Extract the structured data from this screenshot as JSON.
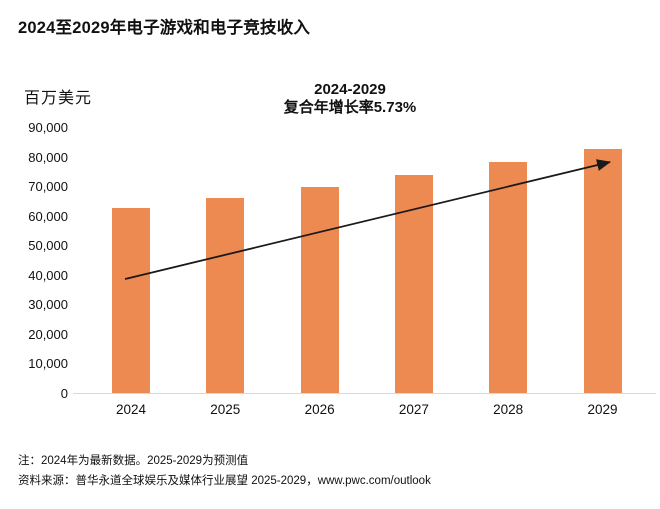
{
  "chart_data": {
    "type": "bar",
    "title": "2024至2029年电子游戏和电子竞技收入",
    "subtitle_line1": "2024-2029",
    "subtitle_line2": "复合年增长率5.73%",
    "unit_label": "百万美元",
    "categories": [
      "2024",
      "2025",
      "2026",
      "2027",
      "2028",
      "2029"
    ],
    "values": [
      62500,
      66000,
      69700,
      73700,
      78100,
      82600
    ],
    "ylabel": "百万美元",
    "xlabel": "",
    "ylim": [
      0,
      90000
    ],
    "ytick_step": 10000,
    "ytick_labels": [
      "0",
      "10,000",
      "20,000",
      "30,000",
      "40,000",
      "50,000",
      "60,000",
      "70,000",
      "80,000",
      "90,000"
    ],
    "grid": "off",
    "legend": "none",
    "bar_color": "#ed8a52",
    "axis_line_color": "#d8d8d8",
    "trend_arrow_color": "#1a1a1a"
  },
  "footer": {
    "note": "注：2024年为最新数据。2025-2029为预测值",
    "source": "资料来源：普华永道全球娱乐及媒体行业展望 2025-2029，www.pwc.com/outlook"
  }
}
